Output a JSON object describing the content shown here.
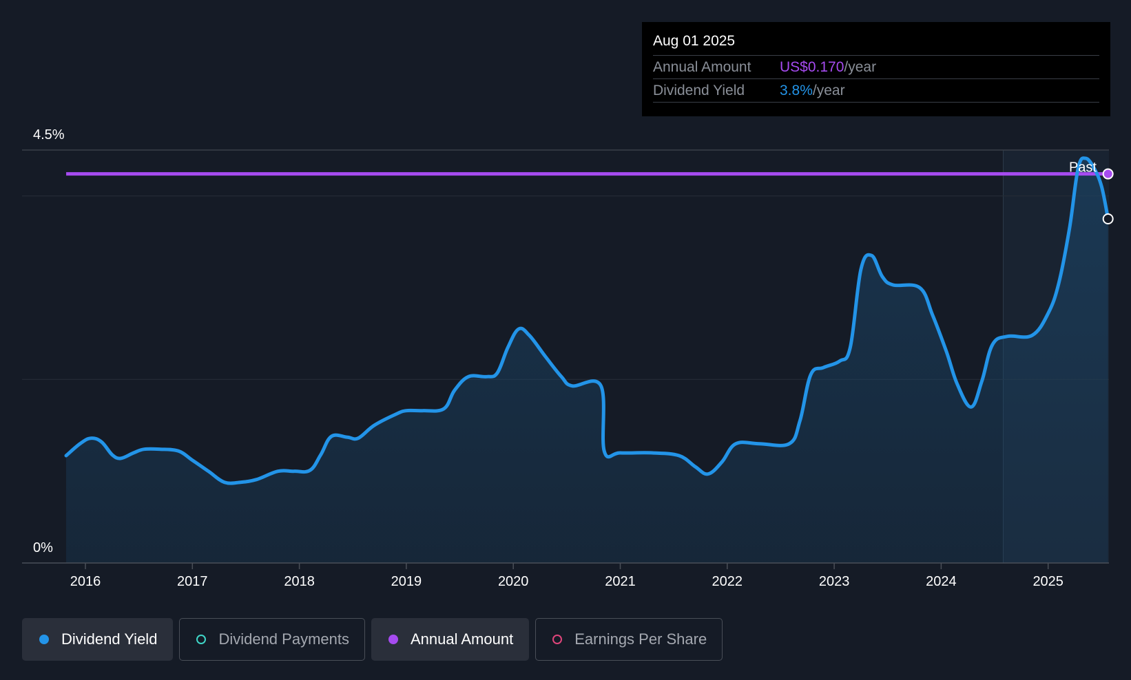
{
  "tooltip": {
    "date": "Aug 01 2025",
    "annual_label": "Annual Amount",
    "annual_value": "US$0.170",
    "annual_unit": "/year",
    "yield_label": "Dividend Yield",
    "yield_value": "3.8%",
    "yield_unit": "/year"
  },
  "legend": {
    "dividend_yield": "Dividend Yield",
    "dividend_payments": "Dividend Payments",
    "annual_amount": "Annual Amount",
    "earnings_per_share": "Earnings Per Share"
  },
  "colors": {
    "background": "#151b26",
    "yield_line": "#2394e8",
    "annual_line": "#a64bf0",
    "payments": "#3fd6c8",
    "eps": "#e0457b",
    "tooltip_annual": "#a64bf0",
    "tooltip_yield": "#2394e8"
  },
  "chart_data": {
    "type": "line",
    "title": "",
    "xlabel": "",
    "ylabel": "",
    "ylim": [
      0,
      4.5
    ],
    "xlim": [
      2015.5,
      2025.6
    ],
    "y_tick_labels": [
      {
        "value": 4.5,
        "label": "4.5%"
      },
      {
        "value": 0,
        "label": "0%"
      }
    ],
    "gridlines": [
      4.5,
      4.0,
      2.0
    ],
    "x_ticks": [
      2016,
      2017,
      2018,
      2019,
      2020,
      2021,
      2022,
      2023,
      2024,
      2025
    ],
    "x_tick_labels": [
      "2016",
      "2017",
      "2018",
      "2019",
      "2020",
      "2021",
      "2022",
      "2023",
      "2024",
      "2025"
    ],
    "past_label": "Past",
    "past_region_start": 2024.58,
    "series": [
      {
        "name": "Dividend Yield",
        "unit": "%",
        "points": [
          [
            2015.82,
            1.17
          ],
          [
            2015.95,
            1.3
          ],
          [
            2016.05,
            1.36
          ],
          [
            2016.15,
            1.32
          ],
          [
            2016.25,
            1.18
          ],
          [
            2016.33,
            1.14
          ],
          [
            2016.45,
            1.2
          ],
          [
            2016.55,
            1.24
          ],
          [
            2016.7,
            1.24
          ],
          [
            2016.87,
            1.22
          ],
          [
            2017.0,
            1.12
          ],
          [
            2017.15,
            1.0
          ],
          [
            2017.3,
            0.88
          ],
          [
            2017.45,
            0.88
          ],
          [
            2017.6,
            0.91
          ],
          [
            2017.8,
            1.0
          ],
          [
            2017.95,
            1.0
          ],
          [
            2018.1,
            1.01
          ],
          [
            2018.2,
            1.18
          ],
          [
            2018.3,
            1.38
          ],
          [
            2018.45,
            1.37
          ],
          [
            2018.55,
            1.36
          ],
          [
            2018.7,
            1.5
          ],
          [
            2018.9,
            1.62
          ],
          [
            2019.0,
            1.66
          ],
          [
            2019.15,
            1.66
          ],
          [
            2019.35,
            1.68
          ],
          [
            2019.45,
            1.88
          ],
          [
            2019.58,
            2.03
          ],
          [
            2019.75,
            2.03
          ],
          [
            2019.85,
            2.07
          ],
          [
            2019.95,
            2.35
          ],
          [
            2020.05,
            2.55
          ],
          [
            2020.15,
            2.48
          ],
          [
            2020.3,
            2.25
          ],
          [
            2020.45,
            2.03
          ],
          [
            2020.55,
            1.93
          ],
          [
            2020.82,
            1.93
          ],
          [
            2020.85,
            1.22
          ],
          [
            2021.0,
            1.2
          ],
          [
            2021.3,
            1.2
          ],
          [
            2021.55,
            1.17
          ],
          [
            2021.7,
            1.05
          ],
          [
            2021.82,
            0.97
          ],
          [
            2021.95,
            1.1
          ],
          [
            2022.08,
            1.3
          ],
          [
            2022.3,
            1.3
          ],
          [
            2022.58,
            1.3
          ],
          [
            2022.68,
            1.55
          ],
          [
            2022.78,
            2.05
          ],
          [
            2022.9,
            2.13
          ],
          [
            2023.05,
            2.2
          ],
          [
            2023.15,
            2.35
          ],
          [
            2023.25,
            3.2
          ],
          [
            2023.35,
            3.35
          ],
          [
            2023.45,
            3.12
          ],
          [
            2023.55,
            3.03
          ],
          [
            2023.8,
            3.0
          ],
          [
            2023.92,
            2.7
          ],
          [
            2024.05,
            2.3
          ],
          [
            2024.15,
            1.95
          ],
          [
            2024.28,
            1.7
          ],
          [
            2024.38,
            1.98
          ],
          [
            2024.48,
            2.38
          ],
          [
            2024.62,
            2.47
          ],
          [
            2024.85,
            2.48
          ],
          [
            2025.0,
            2.72
          ],
          [
            2025.1,
            3.05
          ],
          [
            2025.2,
            3.65
          ],
          [
            2025.28,
            4.3
          ],
          [
            2025.35,
            4.41
          ],
          [
            2025.43,
            4.3
          ],
          [
            2025.5,
            4.1
          ],
          [
            2025.56,
            3.75
          ]
        ]
      },
      {
        "name": "Annual Amount",
        "display_level": 4.24,
        "x_range": [
          2015.82,
          2025.56
        ]
      }
    ],
    "legend": [
      "Dividend Yield",
      "Dividend Payments",
      "Annual Amount",
      "Earnings Per Share"
    ]
  }
}
